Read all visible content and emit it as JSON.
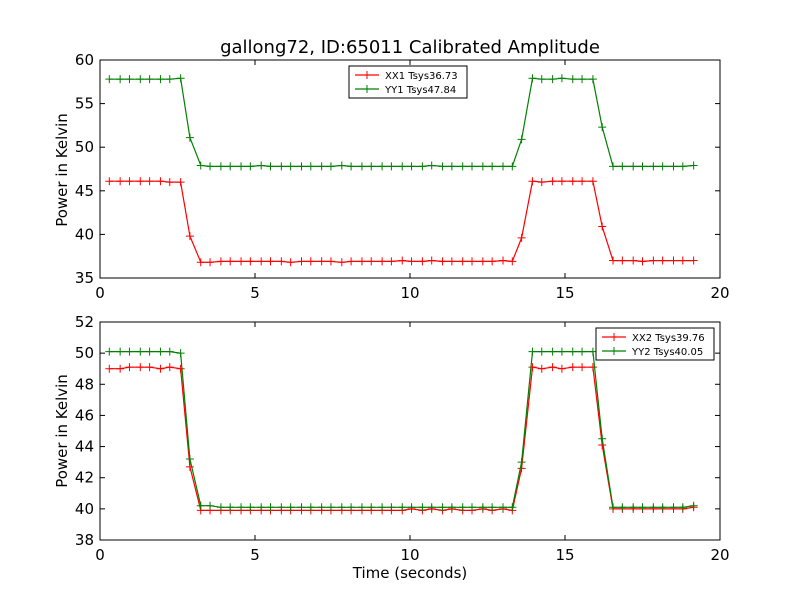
{
  "chart_data": [
    {
      "type": "line",
      "title": "gallong72, ID:65011 Calibrated Amplitude",
      "xlabel": "",
      "ylabel": "Power in Kelvin",
      "xlim": [
        0,
        20
      ],
      "ylim": [
        35,
        60
      ],
      "xticks": [
        0,
        5,
        10,
        15,
        20
      ],
      "yticks": [
        35,
        40,
        45,
        50,
        55,
        60
      ],
      "grid": false,
      "legend_position": "top-center",
      "x": [
        0.3,
        0.65,
        0.95,
        1.3,
        1.6,
        1.95,
        2.25,
        2.6,
        2.9,
        3.25,
        3.55,
        3.9,
        4.2,
        4.55,
        4.85,
        5.2,
        5.5,
        5.85,
        6.15,
        6.5,
        6.8,
        7.15,
        7.45,
        7.8,
        8.1,
        8.45,
        8.75,
        9.1,
        9.4,
        9.75,
        10.05,
        10.4,
        10.7,
        11.05,
        11.35,
        11.7,
        12.0,
        12.35,
        12.65,
        13.0,
        13.3,
        13.6,
        13.95,
        14.25,
        14.6,
        14.9,
        15.25,
        15.55,
        15.9,
        16.2,
        16.55,
        16.85,
        17.2,
        17.5,
        17.85,
        18.15,
        18.5,
        18.8,
        19.15
      ],
      "series": [
        {
          "name": "XX1 Tsys36.73",
          "color": "#ff0000",
          "values": [
            46.1,
            46.1,
            46.1,
            46.1,
            46.1,
            46.1,
            46.0,
            46.0,
            39.8,
            36.8,
            36.8,
            36.9,
            36.9,
            36.9,
            36.9,
            36.9,
            36.9,
            36.9,
            36.8,
            36.9,
            36.9,
            36.9,
            36.9,
            36.8,
            36.9,
            36.9,
            36.9,
            36.9,
            36.9,
            37.0,
            36.9,
            36.9,
            37.0,
            36.9,
            36.9,
            36.9,
            36.9,
            36.9,
            36.9,
            37.0,
            36.9,
            39.6,
            46.1,
            46.0,
            46.1,
            46.1,
            46.1,
            46.1,
            46.1,
            40.9,
            37.0,
            37.0,
            37.0,
            36.9,
            37.0,
            37.0,
            37.0,
            37.0,
            37.0
          ]
        },
        {
          "name": "YY1 Tsys47.84",
          "color": "#008000",
          "values": [
            57.8,
            57.8,
            57.8,
            57.8,
            57.8,
            57.8,
            57.8,
            57.9,
            51.1,
            47.9,
            47.8,
            47.8,
            47.8,
            47.8,
            47.8,
            47.9,
            47.8,
            47.8,
            47.8,
            47.8,
            47.8,
            47.8,
            47.8,
            47.9,
            47.8,
            47.8,
            47.8,
            47.8,
            47.8,
            47.8,
            47.8,
            47.8,
            47.9,
            47.8,
            47.8,
            47.8,
            47.8,
            47.8,
            47.8,
            47.8,
            47.8,
            50.9,
            57.9,
            57.8,
            57.8,
            57.9,
            57.8,
            57.8,
            57.8,
            52.3,
            47.8,
            47.8,
            47.8,
            47.8,
            47.8,
            47.8,
            47.8,
            47.8,
            47.9
          ]
        }
      ]
    },
    {
      "type": "line",
      "title": "",
      "xlabel": "Time (seconds)",
      "ylabel": "Power in Kelvin",
      "xlim": [
        0,
        20
      ],
      "ylim": [
        38,
        52
      ],
      "xticks": [
        0,
        5,
        10,
        15,
        20
      ],
      "yticks": [
        38,
        40,
        42,
        44,
        46,
        48,
        50,
        52
      ],
      "grid": false,
      "legend_position": "top-right",
      "x": [
        0.3,
        0.65,
        0.95,
        1.3,
        1.6,
        1.95,
        2.25,
        2.6,
        2.9,
        3.25,
        3.55,
        3.9,
        4.2,
        4.55,
        4.85,
        5.2,
        5.5,
        5.85,
        6.15,
        6.5,
        6.8,
        7.15,
        7.45,
        7.8,
        8.1,
        8.45,
        8.75,
        9.1,
        9.4,
        9.75,
        10.05,
        10.4,
        10.7,
        11.05,
        11.35,
        11.7,
        12.0,
        12.35,
        12.65,
        13.0,
        13.3,
        13.6,
        13.95,
        14.25,
        14.6,
        14.9,
        15.25,
        15.55,
        15.9,
        16.2,
        16.55,
        16.85,
        17.2,
        17.5,
        17.85,
        18.15,
        18.5,
        18.8,
        19.15
      ],
      "series": [
        {
          "name": "XX2 Tsys39.76",
          "color": "#ff0000",
          "values": [
            49.0,
            49.0,
            49.1,
            49.1,
            49.1,
            49.0,
            49.1,
            49.0,
            42.7,
            39.9,
            39.9,
            39.9,
            39.9,
            39.9,
            39.9,
            39.9,
            39.9,
            39.9,
            39.9,
            39.9,
            39.9,
            39.9,
            39.9,
            39.9,
            39.9,
            39.9,
            39.9,
            39.9,
            39.9,
            39.9,
            40.0,
            39.9,
            40.0,
            39.9,
            40.0,
            39.9,
            39.9,
            40.0,
            39.9,
            40.0,
            39.9,
            42.6,
            49.1,
            49.0,
            49.1,
            49.0,
            49.1,
            49.1,
            49.1,
            44.1,
            40.0,
            40.0,
            40.0,
            40.0,
            40.0,
            40.0,
            40.0,
            40.0,
            40.1
          ]
        },
        {
          "name": "YY2 Tsys40.05",
          "color": "#008000",
          "values": [
            50.1,
            50.1,
            50.1,
            50.1,
            50.1,
            50.1,
            50.1,
            50.0,
            43.2,
            40.2,
            40.2,
            40.1,
            40.1,
            40.1,
            40.1,
            40.1,
            40.1,
            40.1,
            40.1,
            40.1,
            40.1,
            40.1,
            40.1,
            40.1,
            40.1,
            40.1,
            40.1,
            40.1,
            40.1,
            40.1,
            40.1,
            40.1,
            40.1,
            40.1,
            40.1,
            40.1,
            40.1,
            40.1,
            40.1,
            40.1,
            40.1,
            43.0,
            50.1,
            50.1,
            50.1,
            50.1,
            50.1,
            50.1,
            50.1,
            44.5,
            40.1,
            40.1,
            40.1,
            40.1,
            40.1,
            40.1,
            40.1,
            40.1,
            40.2
          ]
        }
      ]
    }
  ]
}
